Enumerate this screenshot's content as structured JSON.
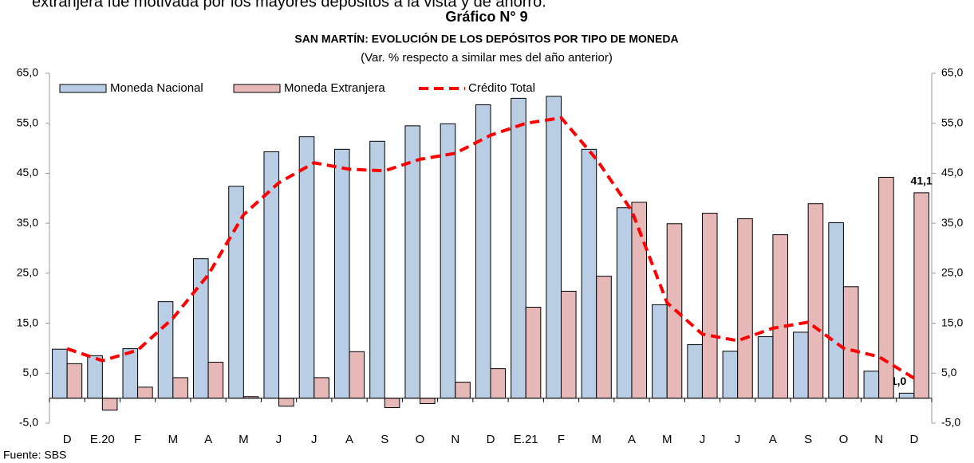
{
  "chart_data": {
    "type": "bar",
    "intro": "extranjera fue motivada por los mayores depósitos a la vista y de ahorro.",
    "title": "Gráfico N° 9",
    "subtitle": "SAN MARTÍN: EVOLUCIÓN DE LOS DEPÓSITOS POR TIPO DE MONEDA",
    "note": "(Var. % respecto a similar mes del año anterior)",
    "source": "Fuente: SBS",
    "categories": [
      "D",
      "E.20",
      "F",
      "M",
      "A",
      "M",
      "J",
      "J",
      "A",
      "S",
      "O",
      "N",
      "D",
      "E.21",
      "F",
      "M",
      "A",
      "M",
      "J",
      "J",
      "A",
      "S",
      "O",
      "N",
      "D"
    ],
    "series": [
      {
        "name": "Moneda Nacional",
        "type": "bar",
        "color": "#b9cde5",
        "values": [
          9.8,
          8.5,
          9.9,
          19.3,
          27.9,
          42.4,
          49.3,
          52.3,
          49.8,
          51.4,
          54.5,
          54.9,
          58.7,
          60.0,
          60.4,
          49.8,
          38.1,
          18.7,
          10.7,
          9.4,
          12.3,
          13.2,
          35.1,
          5.4,
          1.0
        ],
        "value_labels": [
          null,
          null,
          null,
          null,
          null,
          null,
          null,
          null,
          null,
          null,
          null,
          null,
          null,
          null,
          null,
          null,
          null,
          null,
          null,
          null,
          null,
          null,
          null,
          null,
          "1,0"
        ]
      },
      {
        "name": "Moneda Extranjera",
        "type": "bar",
        "color": "#e6b9b8",
        "values": [
          6.9,
          -2.4,
          2.2,
          4.1,
          7.2,
          0.3,
          -1.6,
          4.1,
          9.3,
          -1.9,
          -1.1,
          3.2,
          5.9,
          18.2,
          21.4,
          24.4,
          39.2,
          34.9,
          37.0,
          35.9,
          32.7,
          38.9,
          22.3,
          44.2,
          41.1
        ],
        "value_labels": [
          null,
          null,
          null,
          null,
          null,
          null,
          null,
          null,
          null,
          null,
          null,
          null,
          null,
          null,
          null,
          null,
          null,
          null,
          null,
          null,
          null,
          null,
          null,
          null,
          "41,1"
        ]
      },
      {
        "name": "Crédito Total",
        "type": "line",
        "color": "#ff0000",
        "values": [
          9.9,
          7.5,
          9.6,
          16.0,
          24.7,
          36.7,
          43.1,
          47.1,
          45.8,
          45.5,
          47.8,
          49.0,
          52.6,
          55.0,
          56.1,
          47.8,
          37.5,
          19.1,
          12.8,
          11.5,
          14.0,
          15.2,
          10.0,
          8.3,
          4.0
        ]
      }
    ],
    "ylim": [
      -5,
      65
    ],
    "yticks": [
      {
        "value": -5,
        "label": "-5,0"
      },
      {
        "value": 5,
        "label": "5,0"
      },
      {
        "value": 15,
        "label": "15,0"
      },
      {
        "value": 25,
        "label": "25,0"
      },
      {
        "value": 35,
        "label": "35,0"
      },
      {
        "value": 45,
        "label": "45,0"
      },
      {
        "value": 55,
        "label": "55,0"
      },
      {
        "value": 65,
        "label": "65,0"
      }
    ],
    "y2lim": [
      -5,
      65
    ],
    "y2ticks": [
      {
        "value": -5,
        "label": "-5,0"
      },
      {
        "value": 5,
        "label": "5,0"
      },
      {
        "value": 15,
        "label": "15,0"
      },
      {
        "value": 25,
        "label": "25,0"
      },
      {
        "value": 35,
        "label": "35,0"
      },
      {
        "value": 45,
        "label": "45,0"
      },
      {
        "value": 55,
        "label": "55,0"
      },
      {
        "value": 65,
        "label": "65,0"
      }
    ]
  }
}
